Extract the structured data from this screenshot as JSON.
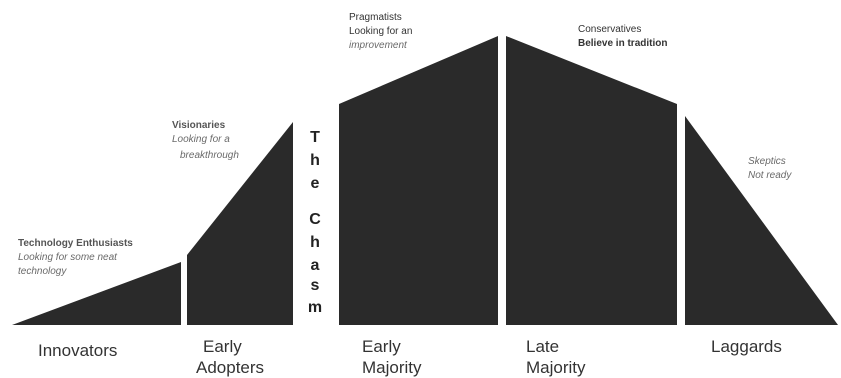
{
  "colors": {
    "shape_top": "#ffffff",
    "shape_bottom": "#2a2a2a",
    "separator": "#ffffff",
    "text": "#333333"
  },
  "chasm": {
    "letters": [
      "T",
      "h",
      "e",
      "",
      "C",
      "h",
      "a",
      "s",
      "m"
    ]
  },
  "segments": [
    {
      "id": "innovators",
      "label_lines": [
        "Innovators"
      ],
      "title": "Technology Enthusiasts",
      "desc_lines": [
        "Looking for some neat",
        "technology"
      ]
    },
    {
      "id": "early-adopters",
      "label_lines": [
        "Early",
        "Adopters"
      ],
      "title": "Visionaries",
      "desc_lines": [
        "Looking for a",
        "breakthrough"
      ]
    },
    {
      "id": "early-majority",
      "label_lines": [
        "Early",
        "Majority"
      ],
      "top_lines": [
        "Pragmatists",
        "Looking for an",
        "improvement"
      ]
    },
    {
      "id": "late-majority",
      "label_lines": [
        "Late",
        "Majority"
      ],
      "top_lines": [
        "Conservatives",
        "Believe in tradition"
      ]
    },
    {
      "id": "laggards",
      "label_lines": [
        "Laggards"
      ],
      "top_lines": [
        "Skeptics",
        "Not ready"
      ]
    }
  ]
}
